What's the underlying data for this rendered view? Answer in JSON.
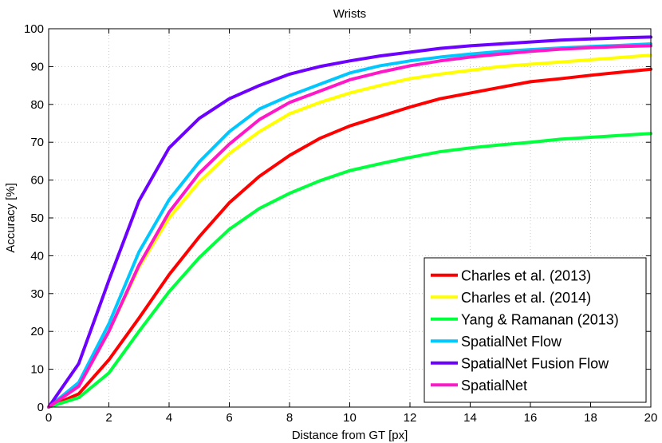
{
  "chart_data": {
    "type": "line",
    "title": "Wrists",
    "xlabel": "Distance from GT [px]",
    "ylabel": "Accuracy [%]",
    "xlim": [
      0,
      20
    ],
    "ylim": [
      0,
      100
    ],
    "xticks": [
      0,
      2,
      4,
      6,
      8,
      10,
      12,
      14,
      16,
      18,
      20
    ],
    "yticks": [
      0,
      10,
      20,
      30,
      40,
      50,
      60,
      70,
      80,
      90,
      100
    ],
    "grid": true,
    "legend_position": "bottom-right",
    "x": [
      0,
      1,
      2,
      3,
      4,
      5,
      6,
      7,
      8,
      9,
      10,
      11,
      12,
      13,
      14,
      15,
      16,
      17,
      18,
      19,
      20
    ],
    "series": [
      {
        "name": "Charles et al. (2013)",
        "color": "#ff0000",
        "values": [
          0,
          3.5,
          12.5,
          23.5,
          35,
          45,
          54,
          61,
          66.5,
          71,
          74.3,
          76.8,
          79.3,
          81.5,
          83,
          84.5,
          86,
          86.8,
          87.7,
          88.5,
          89.3
        ]
      },
      {
        "name": "Charles et al. (2014)",
        "color": "#ffff00",
        "values": [
          0,
          6,
          20,
          37,
          50,
          59.5,
          67,
          72.8,
          77.5,
          80.5,
          83,
          85,
          86.8,
          88,
          89,
          90,
          90.6,
          91.2,
          91.8,
          92.4,
          93
        ]
      },
      {
        "name": "Yang & Ramanan (2013)",
        "color": "#00ff3c",
        "values": [
          0,
          2.5,
          9,
          20,
          30.5,
          39.5,
          47,
          52.5,
          56.5,
          59.8,
          62.5,
          64.3,
          66,
          67.5,
          68.5,
          69.3,
          70,
          70.8,
          71.3,
          71.8,
          72.3
        ]
      },
      {
        "name": "SpatialNet Flow",
        "color": "#00c8ff",
        "values": [
          0,
          6.5,
          22,
          41,
          54.8,
          64.8,
          72.8,
          78.8,
          82.3,
          85.3,
          88.3,
          90.2,
          91.5,
          92.5,
          93.3,
          94,
          94.5,
          94.9,
          95.3,
          95.6,
          96
        ]
      },
      {
        "name": "SpatialNet Fusion Flow",
        "color": "#6e00ff",
        "values": [
          0,
          11.5,
          33.5,
          54.5,
          68.5,
          76.3,
          81.5,
          85,
          88,
          90,
          91.5,
          92.8,
          93.8,
          94.8,
          95.5,
          96,
          96.5,
          97,
          97.3,
          97.6,
          97.8
        ]
      },
      {
        "name": "SpatialNet",
        "color": "#ff18c8",
        "values": [
          0,
          5.5,
          20,
          37.5,
          51.5,
          61.8,
          69.5,
          76,
          80.5,
          83.5,
          86.5,
          88.5,
          90.2,
          91.5,
          92.5,
          93.3,
          94,
          94.6,
          95,
          95.3,
          95.5
        ]
      }
    ]
  }
}
